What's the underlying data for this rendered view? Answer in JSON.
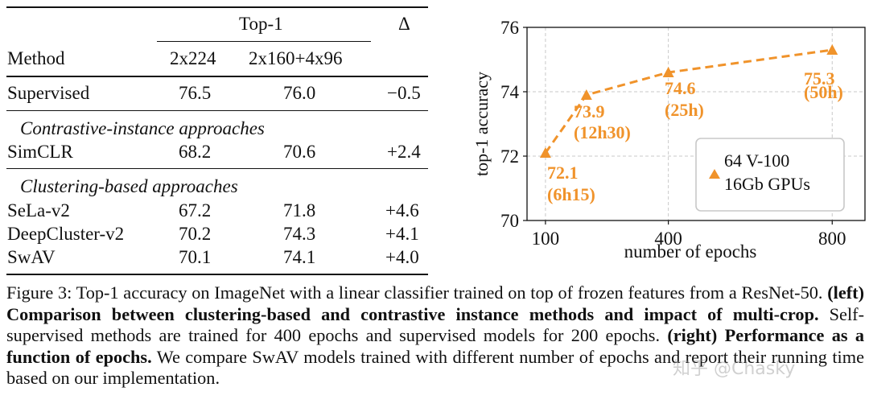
{
  "table": {
    "top1_header": "Top-1",
    "delta_header": "Δ",
    "method_header": "Method",
    "col1_header": "2x224",
    "col2_header": "2x160+4x96",
    "supervised": {
      "method": "Supervised",
      "a": "76.5",
      "b": "76.0",
      "d": "−0.5"
    },
    "section1": "Contrastive-instance approaches",
    "simclr": {
      "method": "SimCLR",
      "a": "68.2",
      "b": "70.6",
      "d": "+2.4"
    },
    "section2": "Clustering-based approaches",
    "rows": [
      {
        "method": "SeLa-v2",
        "a": "67.2",
        "b": "71.8",
        "d": "+4.6"
      },
      {
        "method": "DeepCluster-v2",
        "a": "70.2",
        "b": "74.3",
        "d": "+4.1"
      },
      {
        "method": "SwAV",
        "a": "70.1",
        "b": "74.1",
        "d": "+4.0"
      }
    ]
  },
  "chart_data": {
    "type": "line",
    "xlabel": "number of epochs",
    "ylabel": "top-1 accuracy",
    "x_ticks": [
      "100",
      "400",
      "800"
    ],
    "y_ticks": [
      "70",
      "72",
      "74",
      "76"
    ],
    "xlim": [
      55,
      880
    ],
    "ylim": [
      70,
      76
    ],
    "grid": true,
    "color": "#f0932b",
    "legend": {
      "line1": "64 V-100",
      "line2": "16Gb GPUs",
      "placement": "bottom-right"
    },
    "points": [
      {
        "x": 100,
        "y": 72.1,
        "value": "72.1",
        "time": "(6h15)"
      },
      {
        "x": 200,
        "y": 73.9,
        "value": "73.9",
        "time": "(12h30)"
      },
      {
        "x": 400,
        "y": 74.6,
        "value": "74.6",
        "time": "(25h)"
      },
      {
        "x": 800,
        "y": 75.3,
        "value": "75.3",
        "time": "(50h)"
      }
    ]
  },
  "caption": {
    "p1": "Figure 3: Top-1 accuracy on ImageNet with a linear classifier trained on top of frozen features from a ResNet-50. ",
    "b1": "(left) Comparison between clustering-based and contrastive instance methods and impact of multi-crop.",
    "p2": " Self-supervised methods are trained for 400 epochs and supervised models for 200 epochs. ",
    "b2": "(right) Performance as a function of epochs.",
    "p3": " We compare SwAV models trained with different number of epochs and report their running time based on our implementation."
  },
  "watermark": "知乎 @Chasky"
}
